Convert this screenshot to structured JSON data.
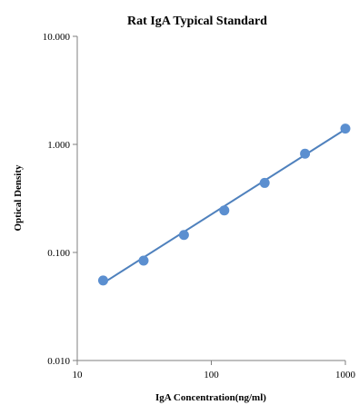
{
  "chart_data": {
    "type": "scatter",
    "title": "Rat IgA Typical  Standard",
    "xlabel": "IgA Concentration(ng/ml)",
    "ylabel": "Optical Density",
    "x_scale": "log",
    "y_scale": "log",
    "xlim": [
      10,
      1000
    ],
    "ylim": [
      0.01,
      10
    ],
    "x_ticks": [
      "10",
      "100",
      "1000"
    ],
    "y_ticks": [
      "10.000",
      "1.000",
      "0.100",
      "0.010"
    ],
    "grid": false,
    "legend": "none",
    "series": [
      {
        "x": [
          15.6,
          31.25,
          62.5,
          125,
          250,
          500,
          1000
        ],
        "y": [
          0.055,
          0.084,
          0.145,
          0.245,
          0.44,
          0.82,
          1.4
        ]
      }
    ],
    "trendline": {
      "type": "power",
      "x": [
        15.6,
        1000
      ],
      "y": [
        0.052,
        1.38
      ]
    },
    "colors": {
      "marker": "#5b8fd0",
      "line": "#4f81bd",
      "axis": "#7f7f7f"
    }
  }
}
